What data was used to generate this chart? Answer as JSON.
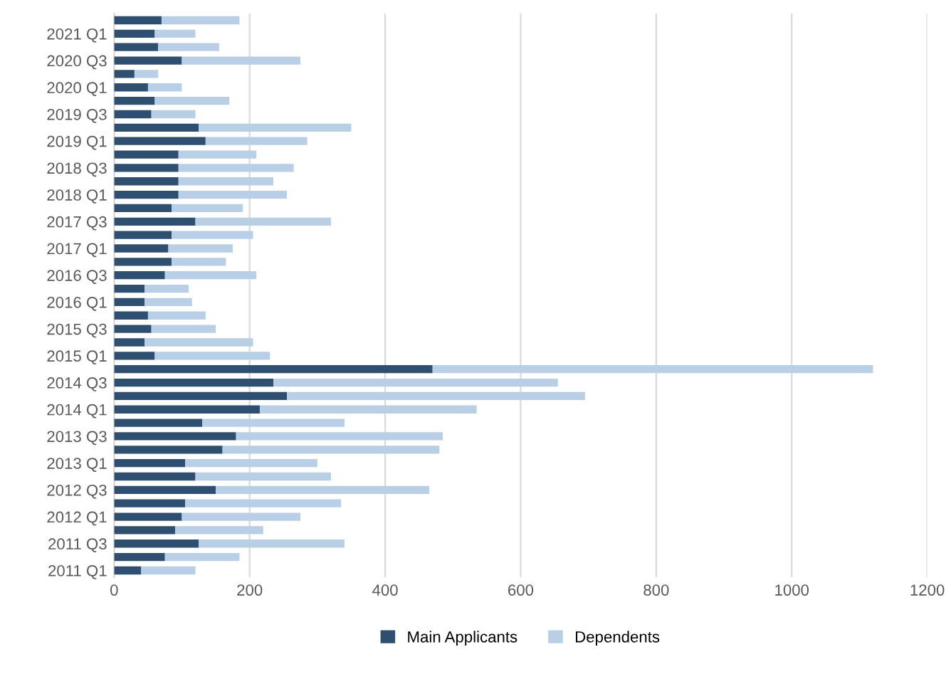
{
  "chart_data": {
    "type": "bar",
    "orientation": "horizontal",
    "stacked": true,
    "categories": [
      null,
      "2021 Q1",
      null,
      "2020 Q3",
      null,
      "2020 Q1",
      null,
      "2019 Q3",
      null,
      "2019 Q1",
      null,
      "2018 Q3",
      null,
      "2018 Q1",
      null,
      "2017 Q3",
      null,
      "2017 Q1",
      null,
      "2016 Q3",
      null,
      "2016 Q1",
      null,
      "2015 Q3",
      null,
      "2015 Q1",
      null,
      "2014 Q3",
      null,
      "2014 Q1",
      null,
      "2013 Q3",
      null,
      "2013 Q1",
      null,
      "2012 Q3",
      null,
      "2012 Q1",
      null,
      "2011 Q3",
      null,
      "2011 Q1"
    ],
    "series": [
      {
        "name": "Main Applicants",
        "color": "#2f4f70",
        "values": [
          70,
          60,
          65,
          100,
          30,
          50,
          60,
          55,
          125,
          135,
          95,
          95,
          95,
          95,
          85,
          120,
          85,
          80,
          85,
          75,
          45,
          45,
          50,
          55,
          45,
          60,
          470,
          235,
          255,
          215,
          130,
          180,
          160,
          105,
          120,
          150,
          105,
          100,
          90,
          125,
          75,
          40
        ]
      },
      {
        "name": "Dependents",
        "color": "#b9cfe6",
        "values": [
          115,
          60,
          90,
          175,
          35,
          50,
          110,
          65,
          225,
          150,
          115,
          170,
          140,
          160,
          105,
          200,
          120,
          95,
          80,
          135,
          65,
          70,
          85,
          95,
          160,
          170,
          650,
          420,
          440,
          320,
          210,
          305,
          320,
          195,
          200,
          315,
          230,
          175,
          130,
          215,
          110,
          80
        ]
      }
    ],
    "xlim": [
      0,
      1200
    ],
    "xticks": [
      0,
      200,
      400,
      600,
      800,
      1000,
      1200
    ],
    "grid": "x",
    "legend": "bottom"
  }
}
